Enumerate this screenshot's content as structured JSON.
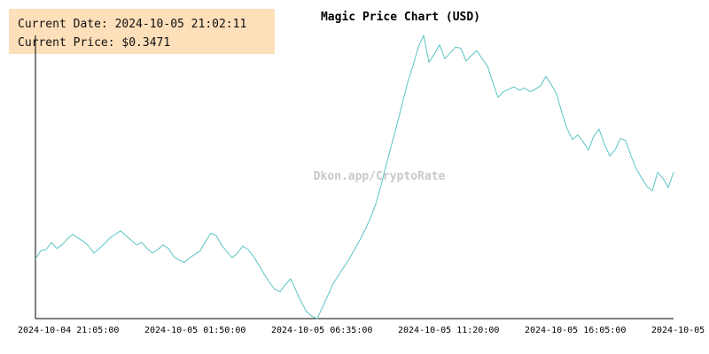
{
  "info": {
    "date_label": "Current Date:",
    "date_value": "2024-10-05 21:02:11",
    "price_label": "Current Price:",
    "price_value": "$0.3471"
  },
  "watermark": "Dkon.app/CryptoRate",
  "colors": {
    "line": "#5bc4c4",
    "axis": "#000000",
    "info_bg": "#fddfba",
    "watermark": "#c8c8c8"
  },
  "chart_data": {
    "type": "line",
    "title": "Magic Price Chart (USD)",
    "xlabel": "",
    "ylabel": "",
    "grid": false,
    "x_tick_labels": [
      "2024-10-04 21:05:00",
      "2024-10-05 01:50:00",
      "2024-10-05 06:35:00",
      "2024-10-05 11:20:00",
      "2024-10-05 16:05:00",
      "2024-10-05"
    ],
    "x_range": [
      "2024-10-04 21:05:00",
      "2024-10-05 21:02:11"
    ],
    "ylim": [
      0.3346,
      0.3588
    ],
    "series": [
      {
        "values": [
          0.3397,
          0.3404,
          0.3405,
          0.3411,
          0.3406,
          0.3409,
          0.3414,
          0.3418,
          0.3415,
          0.3412,
          0.3408,
          0.3402,
          0.3406,
          0.341,
          0.3415,
          0.3418,
          0.3421,
          0.3417,
          0.3413,
          0.3409,
          0.3411,
          0.3406,
          0.3402,
          0.3405,
          0.3409,
          0.3406,
          0.3399,
          0.3396,
          0.3394,
          0.3398,
          0.3401,
          0.3404,
          0.3412,
          0.3419,
          0.3417,
          0.3409,
          0.3403,
          0.3398,
          0.3402,
          0.3408,
          0.3405,
          0.3399,
          0.3392,
          0.3384,
          0.3377,
          0.3371,
          0.3369,
          0.3375,
          0.338,
          0.337,
          0.336,
          0.3352,
          0.3348,
          0.3346,
          0.3356,
          0.3366,
          0.3376,
          0.3383,
          0.339,
          0.3397,
          0.3405,
          0.3413,
          0.3422,
          0.3432,
          0.3444,
          0.346,
          0.3478,
          0.3495,
          0.3512,
          0.353,
          0.3548,
          0.3562,
          0.3578,
          0.3588,
          0.3565,
          0.3572,
          0.358,
          0.3568,
          0.3573,
          0.3578,
          0.3577,
          0.3566,
          0.3571,
          0.3575,
          0.3568,
          0.3562,
          0.3548,
          0.3535,
          0.354,
          0.3542,
          0.3544,
          0.3541,
          0.3543,
          0.354,
          0.3542,
          0.3545,
          0.3553,
          0.3546,
          0.3538,
          0.3522,
          0.3508,
          0.3499,
          0.3503,
          0.3497,
          0.349,
          0.3502,
          0.3508,
          0.3495,
          0.3485,
          0.349,
          0.35,
          0.3498,
          0.3485,
          0.3474,
          0.3466,
          0.3459,
          0.3455,
          0.3471,
          0.3466,
          0.3458,
          0.3471
        ]
      }
    ]
  }
}
